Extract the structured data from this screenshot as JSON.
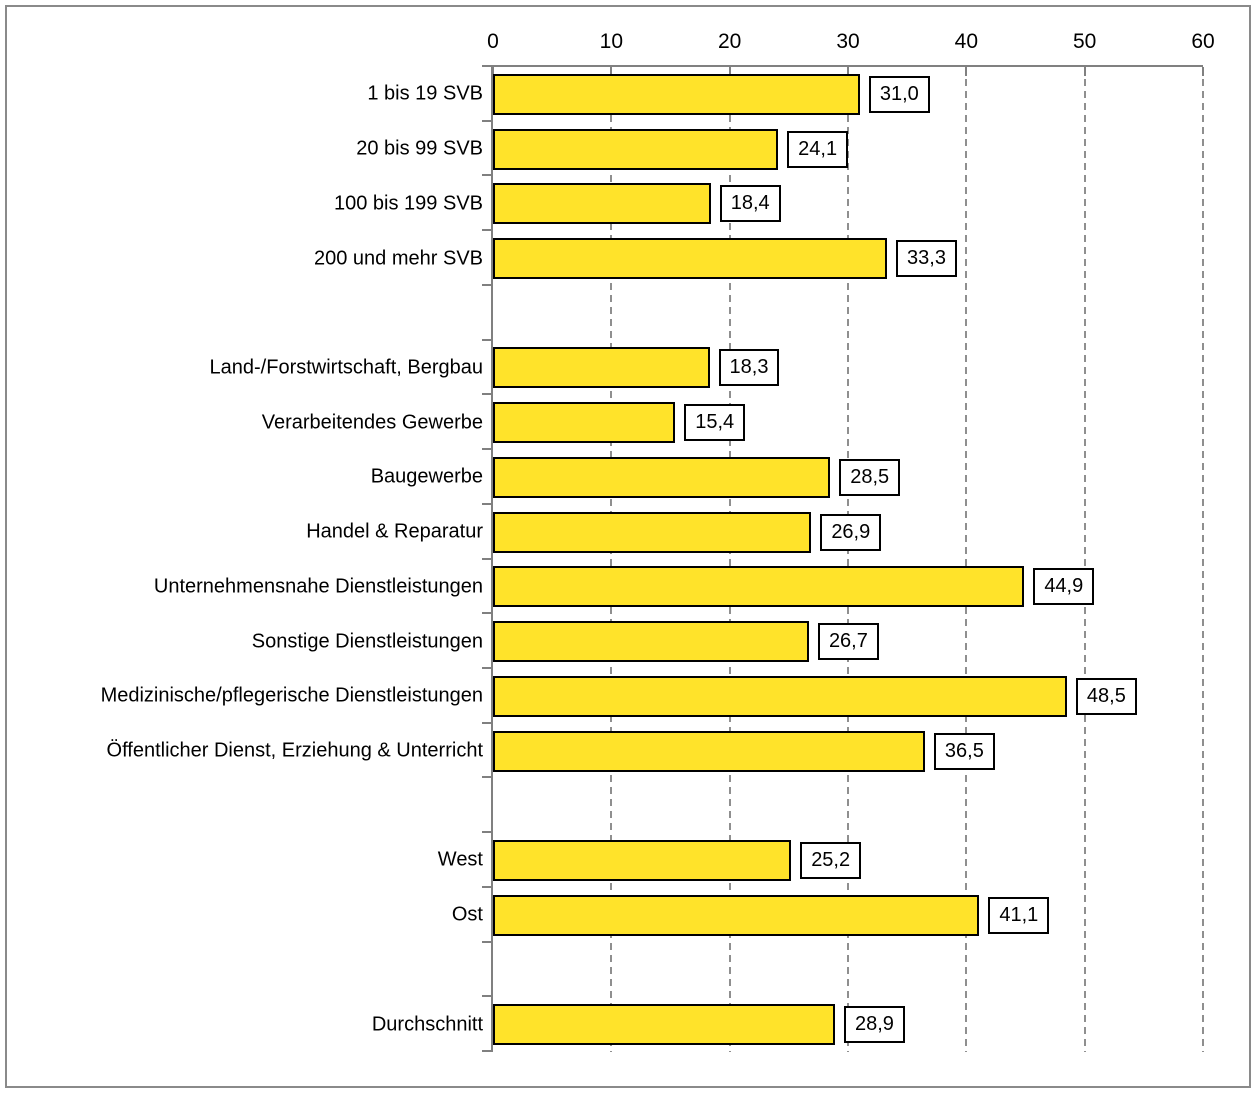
{
  "chart_data": {
    "type": "bar",
    "orientation": "horizontal",
    "title": "",
    "xlabel": "",
    "ylabel": "",
    "axis": {
      "position": "top",
      "min": 0,
      "max": 60,
      "ticks": [
        "0",
        "10",
        "20",
        "30",
        "40",
        "50",
        "60"
      ],
      "tick_values": [
        0,
        10,
        20,
        30,
        40,
        50,
        60
      ],
      "grid": "dashed-vertical"
    },
    "rows": [
      {
        "label": "1 bis 19 SVB",
        "value": 31.0,
        "display": "31,0"
      },
      {
        "label": "20 bis 99 SVB",
        "value": 24.1,
        "display": "24,1"
      },
      {
        "label": "100 bis 199 SVB",
        "value": 18.4,
        "display": "18,4"
      },
      {
        "label": "200 und mehr SVB",
        "value": 33.3,
        "display": "33,3"
      },
      {
        "spacer": true
      },
      {
        "label": "Land-/Forstwirtschaft, Bergbau",
        "value": 18.3,
        "display": "18,3"
      },
      {
        "label": "Verarbeitendes Gewerbe",
        "value": 15.4,
        "display": "15,4"
      },
      {
        "label": "Baugewerbe",
        "value": 28.5,
        "display": "28,5"
      },
      {
        "label": "Handel & Reparatur",
        "value": 26.9,
        "display": "26,9"
      },
      {
        "label": "Unternehmensnahe Dienstleistungen",
        "value": 44.9,
        "display": "44,9"
      },
      {
        "label": "Sonstige Dienstleistungen",
        "value": 26.7,
        "display": "26,7"
      },
      {
        "label": "Medizinische/pflegerische Dienstleistungen",
        "value": 48.5,
        "display": "48,5"
      },
      {
        "label": "Öffentlicher Dienst, Erziehung & Unterricht",
        "value": 36.5,
        "display": "36,5"
      },
      {
        "spacer": true
      },
      {
        "label": "West",
        "value": 25.2,
        "display": "25,2"
      },
      {
        "label": "Ost",
        "value": 41.1,
        "display": "41,1"
      },
      {
        "spacer": true
      },
      {
        "label": "Durchschnitt",
        "value": 28.9,
        "display": "28,9"
      }
    ],
    "colors": {
      "bar_fill": "#FFE32A",
      "bar_border": "#000000",
      "axis": "#808080",
      "gridline": "#8F8F8F",
      "frame_border": "#8A8A8A",
      "value_box_bg": "#FFFFFF",
      "value_box_border": "#000000",
      "text": "#000000",
      "background": "#FFFFFF"
    }
  }
}
